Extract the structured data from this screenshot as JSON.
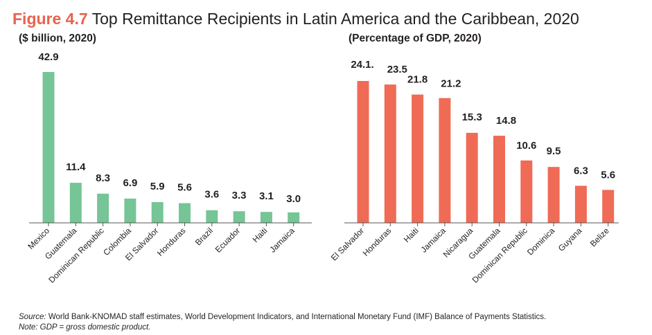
{
  "figure": {
    "label": "Figure 4.7",
    "title": "Top Remittance Recipients in Latin America and the Caribbean, 2020"
  },
  "chart_data": [
    {
      "type": "bar",
      "subtitle": "($ billion, 2020)",
      "categories": [
        "Mexico",
        "Guatemala",
        "Dominican Republic",
        "Colombia",
        "El Salvador",
        "Honduras",
        "Brazil",
        "Ecuador",
        "Haiti",
        "Jamaica"
      ],
      "values": [
        42.9,
        11.4,
        8.3,
        6.9,
        5.9,
        5.6,
        3.6,
        3.3,
        3.1,
        3.0
      ],
      "value_labels": [
        "42.9",
        "11.4",
        "8.3",
        "6.9",
        "5.9",
        "5.6",
        "3.6",
        "3.3",
        "3.1",
        "3.0"
      ],
      "color": "#76c596",
      "xlabel": "",
      "ylabel": "",
      "ylim": [
        0,
        42.9
      ],
      "grid": false,
      "legend": "none"
    },
    {
      "type": "bar",
      "subtitle": "(Percentage of GDP, 2020)",
      "categories": [
        "El Salvador",
        "Honduras",
        "Haiti",
        "Jamaica",
        "Nicaragua",
        "Guatemala",
        "Dominican Republic",
        "Dominica",
        "Guyana",
        "Belize"
      ],
      "values": [
        24.1,
        23.5,
        21.8,
        21.2,
        15.3,
        14.8,
        10.6,
        9.5,
        6.3,
        5.6
      ],
      "value_labels": [
        "24.1.",
        "23.5",
        "21.8",
        "21.2",
        "15.3",
        "14.8",
        "10.6",
        "9.5",
        "6.3",
        "5.6"
      ],
      "color": "#ef6b56",
      "xlabel": "",
      "ylabel": "",
      "ylim": [
        0,
        24.1
      ],
      "grid": false,
      "legend": "none"
    }
  ],
  "source_label": "Source:",
  "source_text": "World Bank-KNOMAD staff estimates, World Development Indicators, and International Monetary Fund (IMF) Balance of Payments Statistics.",
  "note": "Note: GDP = gross domestic product."
}
